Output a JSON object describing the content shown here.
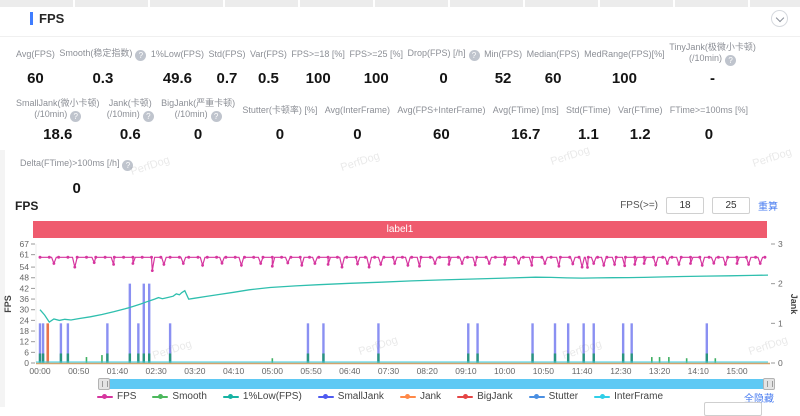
{
  "page": {
    "watermark": "PerfDog"
  },
  "header": {
    "title": "FPS"
  },
  "stats": {
    "rows": [
      [
        {
          "label": "Avg(FPS)",
          "value": "60"
        },
        {
          "label": "Smooth(稳定指数)",
          "help": true,
          "value": "0.3"
        },
        {
          "label": "1%Low(FPS)",
          "value": "49.6"
        },
        {
          "label": "Std(FPS)",
          "value": "0.7"
        },
        {
          "label": "Var(FPS)",
          "value": "0.5"
        },
        {
          "label": "FPS>=18 [%]",
          "value": "100"
        },
        {
          "label": "FPS>=25 [%]",
          "value": "100"
        },
        {
          "label": "Drop(FPS) [/h]",
          "help": true,
          "value": "0"
        },
        {
          "label": "Min(FPS)",
          "value": "52"
        },
        {
          "label": "Median(FPS)",
          "value": "60"
        },
        {
          "label": "MedRange(FPS)[%]",
          "value": "100"
        },
        {
          "label": "TinyJank(极微小卡顿)",
          "label2": "(/10min)",
          "help": true,
          "value": "-"
        }
      ],
      [
        {
          "label": "SmallJank(微小卡顿)",
          "label2": "(/10min)",
          "help": true,
          "value": "18.6"
        },
        {
          "label": "Jank(卡顿)",
          "label2": "(/10min)",
          "help": true,
          "value": "0.6"
        },
        {
          "label": "BigJank(严重卡顿)",
          "label2": "(/10min)",
          "help": true,
          "value": "0"
        },
        {
          "label": "Stutter(卡顿率) [%]",
          "value": "0"
        },
        {
          "label": "Avg(InterFrame)",
          "value": "0"
        },
        {
          "label": "Avg(FPS+InterFrame)",
          "value": "60"
        },
        {
          "label": "Avg(FTime) [ms]",
          "value": "16.7"
        },
        {
          "label": "Std(FTime)",
          "value": "1.1"
        },
        {
          "label": "Var(FTime)",
          "value": "1.2"
        },
        {
          "label": "FTime>=100ms [%]",
          "value": "0"
        }
      ],
      [
        {
          "label": "Delta(FTime)>100ms [/h]",
          "help": true,
          "value": "0"
        }
      ]
    ]
  },
  "chart_section": {
    "title": "FPS",
    "threshold_label": "FPS(>=)",
    "threshold_values": [
      "18",
      "25"
    ],
    "recalc_link": "重算",
    "hide_all_link": "全隐藏"
  },
  "chart_data": {
    "type": "line",
    "banner": "label1",
    "y_left_label": "FPS",
    "y_right_label": "Jank",
    "y_left_ticks": [
      0,
      6,
      12,
      18,
      24,
      30,
      36,
      42,
      48,
      54,
      61,
      67
    ],
    "y_right_ticks": [
      0,
      1,
      2,
      3
    ],
    "y_left_range": [
      0,
      67
    ],
    "y_right_range": [
      0,
      3
    ],
    "x_tick_labels": [
      "00:00",
      "00:50",
      "01:40",
      "02:30",
      "03:20",
      "04:10",
      "05:00",
      "05:50",
      "06:40",
      "07:30",
      "08:20",
      "09:10",
      "10:00",
      "10:50",
      "11:40",
      "12:30",
      "13:20",
      "14:10",
      "15:00"
    ],
    "x_tick_interval_s": 50,
    "t_max_s": 940,
    "legend": [
      {
        "label": "FPS",
        "color": "#d6369f"
      },
      {
        "label": "Smooth",
        "color": "#4cb85c"
      },
      {
        "label": "1%Low(FPS)",
        "color": "#17b3a3"
      },
      {
        "label": "SmallJank",
        "color": "#4f5bf0"
      },
      {
        "label": "Jank",
        "color": "#ff8948"
      },
      {
        "label": "BigJank",
        "color": "#e54545"
      },
      {
        "label": "Stutter",
        "color": "#4a8fe2"
      },
      {
        "label": "InterFrame",
        "color": "#30cfe8"
      }
    ],
    "series": {
      "fps": {
        "name": "FPS",
        "color": "#d6369f",
        "axis": "fps",
        "baseline": 59.5,
        "dips": [
          [
            18,
            56
          ],
          [
            45,
            54
          ],
          [
            70,
            56.5
          ],
          [
            95,
            55.5
          ],
          [
            120,
            56
          ],
          [
            145,
            52
          ],
          [
            160,
            55.5
          ],
          [
            185,
            56
          ],
          [
            210,
            55
          ],
          [
            235,
            56.2
          ],
          [
            260,
            55
          ],
          [
            285,
            56
          ],
          [
            300,
            54.5
          ],
          [
            320,
            56.3
          ],
          [
            338,
            55
          ],
          [
            355,
            56
          ],
          [
            372,
            55.5
          ],
          [
            390,
            54
          ],
          [
            410,
            55.8
          ],
          [
            425,
            54
          ],
          [
            440,
            55.5
          ],
          [
            458,
            56
          ],
          [
            475,
            55
          ],
          [
            490,
            54.5
          ],
          [
            510,
            56
          ],
          [
            528,
            55.5
          ],
          [
            545,
            56
          ],
          [
            562,
            55.2
          ],
          [
            580,
            56
          ],
          [
            600,
            55.5
          ],
          [
            618,
            56.2
          ],
          [
            635,
            55
          ],
          [
            652,
            56
          ],
          [
            670,
            54.5
          ],
          [
            688,
            55.8
          ],
          [
            700,
            54
          ],
          [
            707,
            53.8
          ],
          [
            715,
            56
          ],
          [
            728,
            55
          ],
          [
            742,
            55.5
          ],
          [
            755,
            54.8
          ],
          [
            768,
            55.5
          ],
          [
            780,
            56
          ],
          [
            795,
            55.2
          ],
          [
            810,
            56
          ],
          [
            825,
            55.5
          ],
          [
            840,
            56
          ],
          [
            855,
            55
          ],
          [
            870,
            56.2
          ],
          [
            885,
            55.5
          ],
          [
            900,
            56
          ],
          [
            915,
            55.5
          ],
          [
            930,
            56
          ]
        ]
      },
      "low": {
        "name": "1%Low(FPS)",
        "color": "#2fbfae",
        "axis": "fps",
        "points": [
          [
            0,
            30
          ],
          [
            6,
            27
          ],
          [
            12,
            23
          ],
          [
            18,
            24.8
          ],
          [
            25,
            24
          ],
          [
            32,
            24.6
          ],
          [
            40,
            24.2
          ],
          [
            50,
            25
          ],
          [
            65,
            26
          ],
          [
            80,
            27.3
          ],
          [
            95,
            28.8
          ],
          [
            110,
            30.5
          ],
          [
            120,
            31.8
          ],
          [
            130,
            33.2
          ],
          [
            140,
            34.8
          ],
          [
            148,
            36
          ],
          [
            153,
            36.8
          ],
          [
            158,
            36.2
          ],
          [
            165,
            36.9
          ],
          [
            172,
            37.6
          ],
          [
            176,
            38.9
          ],
          [
            180,
            38.4
          ],
          [
            183,
            39.6
          ],
          [
            187,
            40.7
          ],
          [
            192,
            36
          ],
          [
            200,
            36.5
          ],
          [
            215,
            37.5
          ],
          [
            230,
            38.5
          ],
          [
            250,
            39.8
          ],
          [
            270,
            41.2
          ],
          [
            297,
            42.5
          ],
          [
            330,
            43.4
          ],
          [
            360,
            44.1
          ],
          [
            400,
            44.9
          ],
          [
            440,
            45.5
          ],
          [
            480,
            46.2
          ],
          [
            520,
            46.8
          ],
          [
            560,
            47.3
          ],
          [
            600,
            47.8
          ],
          [
            640,
            48.3
          ],
          [
            660,
            48.2
          ],
          [
            680,
            47.9
          ],
          [
            700,
            47.8
          ],
          [
            720,
            47.9
          ],
          [
            740,
            48
          ],
          [
            760,
            48.1
          ],
          [
            780,
            48.2
          ],
          [
            800,
            48.4
          ],
          [
            830,
            48.7
          ],
          [
            860,
            48.9
          ],
          [
            890,
            49.1
          ],
          [
            920,
            49.3
          ],
          [
            940,
            49.5
          ]
        ]
      },
      "small_jank": {
        "name": "SmallJank",
        "color": "#8a90f2",
        "axis": "jank",
        "points": [
          [
            0,
            1
          ],
          [
            4,
            1
          ],
          [
            27,
            1
          ],
          [
            36,
            1
          ],
          [
            87,
            1
          ],
          [
            116,
            2
          ],
          [
            127,
            1
          ],
          [
            134,
            2
          ],
          [
            141,
            2
          ],
          [
            168,
            1
          ],
          [
            346,
            1
          ],
          [
            366,
            1
          ],
          [
            437,
            1
          ],
          [
            553,
            1
          ],
          [
            565,
            1
          ],
          [
            636,
            1
          ],
          [
            665,
            1
          ],
          [
            682,
            1
          ],
          [
            702,
            1
          ],
          [
            715,
            1
          ],
          [
            753,
            1
          ],
          [
            764,
            1
          ],
          [
            861,
            1
          ]
        ]
      },
      "jank": {
        "name": "Jank",
        "color": "#e8734d",
        "axis": "jank",
        "points": [
          [
            10,
            1
          ]
        ]
      },
      "smooth": {
        "name": "Smooth",
        "color": "#3faf62",
        "axis": "jank",
        "points": [
          [
            60,
            0.15
          ],
          [
            80,
            0.2
          ],
          [
            116,
            0.3
          ],
          [
            134,
            0.3
          ],
          [
            141,
            0.3
          ],
          [
            300,
            0.12
          ],
          [
            346,
            0.2
          ],
          [
            366,
            0.15
          ],
          [
            437,
            0.25
          ],
          [
            553,
            0.2
          ],
          [
            565,
            0.2
          ],
          [
            636,
            0.15
          ],
          [
            665,
            0.2
          ],
          [
            682,
            0.25
          ],
          [
            702,
            0.3
          ],
          [
            715,
            0.2
          ],
          [
            753,
            0.2
          ],
          [
            764,
            0.2
          ],
          [
            790,
            0.15
          ],
          [
            800,
            0.15
          ],
          [
            812,
            0.15
          ],
          [
            835,
            0.12
          ],
          [
            861,
            0.25
          ],
          [
            872,
            0.12
          ]
        ]
      },
      "interframe": {
        "name": "InterFrame",
        "color": "#35cce0",
        "axis": "fps",
        "flat_value": 0
      },
      "stutter": {
        "name": "Stutter",
        "color": "#4a8fe2",
        "axis": "fps",
        "flat_value": 0
      },
      "big_jank": {
        "name": "BigJank",
        "color": "#e54545",
        "axis": "jank",
        "points": []
      }
    }
  }
}
